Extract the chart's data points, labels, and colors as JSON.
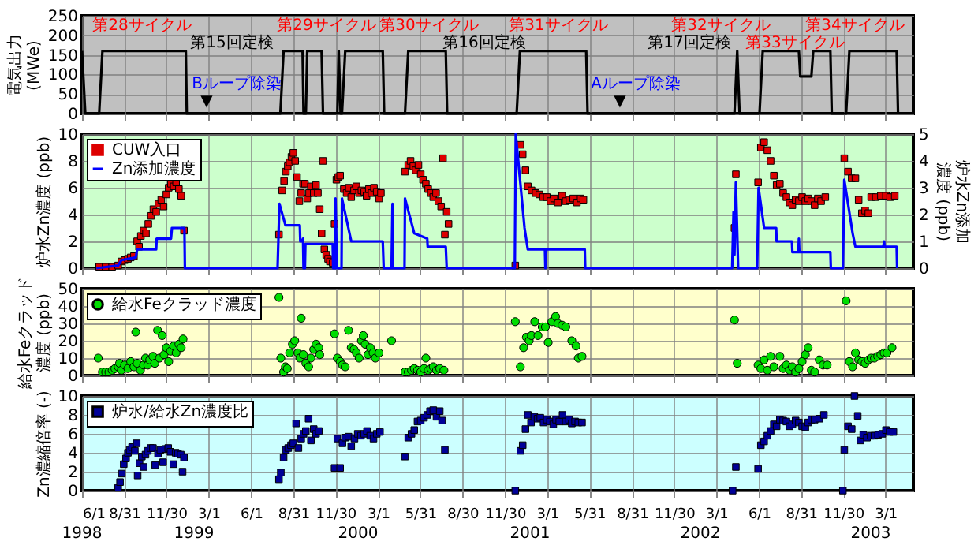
{
  "chart_data": [
    {
      "type": "line",
      "ylabel": "電気出力(MWe)",
      "xlim": [
        "1998-06-01",
        "2003-04-30"
      ],
      "ylim": [
        0,
        250
      ],
      "yticks": [
        0,
        50,
        100,
        150,
        200,
        250
      ],
      "grid": true,
      "tick_labels": "y",
      "xticks": [
        {
          "value": "1998-06-01",
          "label": null
        },
        {
          "value": "1998-08-31",
          "label": null
        },
        {
          "value": "1998-11-30",
          "label": null
        },
        {
          "value": "1999-03-01",
          "label": null
        },
        {
          "value": "1999-06-01",
          "label": null
        },
        {
          "value": "1999-08-31",
          "label": null
        },
        {
          "value": "1999-11-30",
          "label": null
        },
        {
          "value": "2000-03-01",
          "label": null
        },
        {
          "value": "2000-05-31",
          "label": null
        },
        {
          "value": "2000-08-30",
          "label": null
        },
        {
          "value": "2000-11-30",
          "label": null
        },
        {
          "value": "2001-03-01",
          "label": null
        },
        {
          "value": "2001-05-31",
          "label": null
        },
        {
          "value": "2001-08-31",
          "label": null
        },
        {
          "value": "2001-11-30",
          "label": null
        },
        {
          "value": "2002-03-01",
          "label": null
        },
        {
          "value": "2002-06-01",
          "label": null
        },
        {
          "value": "2002-08-31",
          "label": null
        },
        {
          "value": "2002-11-30",
          "label": null
        },
        {
          "value": "2003-03-01",
          "label": null
        }
      ],
      "series": [
        {
          "color": "#000000",
          "x": [
            "1998-06-01",
            "1998-06-08",
            "1998-07-08",
            "1998-07-15",
            "1999-01-11",
            "1999-01-13",
            "1999-08-03",
            "1999-08-10",
            "1999-09-20",
            "1999-09-22",
            "1999-09-27",
            "1999-09-30",
            "1999-10-31",
            "1999-11-03",
            "1999-12-04",
            "1999-12-07",
            "1999-12-11",
            "1999-12-14",
            "1999-12-21",
            "2000-03-11",
            "2000-03-14",
            "2000-04-28",
            "2000-05-05",
            "2000-07-25",
            "2000-07-28",
            "2000-12-25",
            "2001-01-01",
            "2001-05-24",
            "2001-05-27",
            "2002-04-09",
            "2002-04-15",
            "2002-04-20",
            "2002-06-02",
            "2002-06-09",
            "2002-08-26",
            "2002-08-29",
            "2002-09-22",
            "2002-09-26",
            "2002-11-02",
            "2002-11-05",
            "2002-12-06",
            "2002-12-13",
            "2003-03-25",
            "2003-03-28"
          ],
          "values": [
            160,
            0,
            0,
            160,
            160,
            0,
            0,
            160,
            160,
            0,
            0,
            160,
            160,
            0,
            0,
            160,
            0,
            0,
            160,
            160,
            0,
            0,
            160,
            160,
            0,
            0,
            160,
            160,
            0,
            0,
            160,
            0,
            0,
            160,
            160,
            95,
            95,
            160,
            160,
            0,
            0,
            160,
            160,
            0
          ]
        }
      ],
      "annotations": [
        "第28サイクル",
        "第29サイクル",
        "第30サイクル",
        "第31サイクル",
        "第32サイクル",
        "第33サイクル",
        "第34サイクル",
        "第15回定検",
        "第16回定検",
        "第17回定検",
        "Bループ除染",
        "▼",
        "Aループ除染",
        "▼"
      ]
    },
    {
      "type": "scatter",
      "ylabel": "炉水Zn濃度 (ppb)",
      "y2label": "炉水Zn添加濃度 (ppb)",
      "xlim": [
        "1998-06-01",
        "2003-04-30"
      ],
      "ylim": [
        0,
        10
      ],
      "yticks": [
        0,
        2,
        4,
        6,
        8,
        10
      ],
      "y2lim": [
        0,
        5
      ],
      "y2ticks": [
        0,
        1,
        2,
        3,
        4,
        5
      ],
      "grid": true,
      "tick_labels": "y",
      "legend": "top left",
      "xticks": [
        {
          "value": "1998-06-01",
          "label": null
        },
        {
          "value": "1998-08-31",
          "label": null
        },
        {
          "value": "1998-11-30",
          "label": null
        },
        {
          "value": "1999-03-01",
          "label": null
        },
        {
          "value": "1999-06-01",
          "label": null
        },
        {
          "value": "1999-08-31",
          "label": null
        },
        {
          "value": "1999-11-30",
          "label": null
        },
        {
          "value": "2000-03-01",
          "label": null
        },
        {
          "value": "2000-05-31",
          "label": null
        },
        {
          "value": "2000-08-30",
          "label": null
        },
        {
          "value": "2000-11-30",
          "label": null
        },
        {
          "value": "2001-03-01",
          "label": null
        },
        {
          "value": "2001-05-31",
          "label": null
        },
        {
          "value": "2001-08-31",
          "label": null
        },
        {
          "value": "2001-11-30",
          "label": null
        },
        {
          "value": "2002-03-01",
          "label": null
        },
        {
          "value": "2002-06-01",
          "label": null
        },
        {
          "value": "2002-08-31",
          "label": null
        },
        {
          "value": "2002-11-30",
          "label": null
        },
        {
          "value": "2003-03-01",
          "label": null
        }
      ],
      "series": [
        {
          "name": "CUW入口",
          "marker": "square",
          "color": "#dd0000",
          "x": [
            "1998-07-08",
            "1998-07-22",
            "1998-08-05",
            "1998-08-18",
            "1998-08-25",
            "1998-09-01",
            "1998-09-08",
            "1998-09-14",
            "1998-09-21",
            "1998-09-28",
            "1998-10-02",
            "1998-10-06",
            "1998-10-12",
            "1998-10-17",
            "1998-10-22",
            "1998-10-28",
            "1998-11-02",
            "1998-11-08",
            "1998-11-13",
            "1998-11-19",
            "1998-11-24",
            "1998-11-30",
            "1998-12-05",
            "1998-12-10",
            "1998-12-16",
            "1998-12-21",
            "1998-12-27",
            "1999-01-01",
            "1999-01-07",
            "1999-07-31",
            "1999-08-07",
            "1999-08-11",
            "1999-08-15",
            "1999-08-19",
            "1999-08-23",
            "1999-08-27",
            "1999-08-31",
            "1999-09-04",
            "1999-09-08",
            "1999-09-13",
            "1999-09-17",
            "1999-09-21",
            "1999-09-25",
            "1999-09-30",
            "1999-10-04",
            "1999-10-08",
            "1999-10-14",
            "1999-10-19",
            "1999-10-23",
            "1999-10-27",
            "1999-10-31",
            "1999-11-03",
            "1999-11-06",
            "1999-11-10",
            "1999-11-14",
            "1999-11-18",
            "1999-11-24",
            "1999-11-28",
            "1999-12-02",
            "1999-12-06",
            "1999-12-10",
            "1999-12-18",
            "1999-12-24",
            "1999-12-29",
            "2000-01-03",
            "2000-01-09",
            "2000-01-14",
            "2000-01-20",
            "2000-01-25",
            "2000-01-31",
            "2000-02-05",
            "2000-02-10",
            "2000-02-16",
            "2000-02-21",
            "2000-02-27",
            "2000-03-03",
            "2000-03-07",
            "2000-04-28",
            "2000-05-05",
            "2000-05-10",
            "2000-05-16",
            "2000-05-21",
            "2000-05-27",
            "2000-06-01",
            "2000-06-06",
            "2000-06-12",
            "2000-06-17",
            "2000-06-23",
            "2000-06-28",
            "2000-07-04",
            "2000-07-09",
            "2000-07-15",
            "2000-07-19",
            "2000-07-23",
            "2000-07-27",
            "2000-07-31",
            "2000-12-22",
            "2001-01-02",
            "2001-01-07",
            "2001-01-13",
            "2001-01-18",
            "2001-01-26",
            "2001-02-04",
            "2001-02-12",
            "2001-02-20",
            "2001-02-28",
            "2001-03-08",
            "2001-03-16",
            "2001-03-24",
            "2001-04-02",
            "2001-04-10",
            "2001-04-18",
            "2001-04-26",
            "2001-05-04",
            "2001-05-12",
            "2001-05-18",
            "2002-04-09",
            "2002-04-12",
            "2002-05-30",
            "2002-06-05",
            "2002-06-12",
            "2002-06-19",
            "2002-06-26",
            "2002-07-03",
            "2002-07-09",
            "2002-07-16",
            "2002-07-23",
            "2002-07-30",
            "2002-08-06",
            "2002-08-12",
            "2002-08-19",
            "2002-08-26",
            "2002-09-02",
            "2002-09-09",
            "2002-09-15",
            "2002-09-22",
            "2002-09-29",
            "2002-10-06",
            "2002-10-13",
            "2002-10-22",
            "2002-12-02",
            "2002-12-10",
            "2002-12-18",
            "2002-12-26",
            "2003-01-02",
            "2003-01-09",
            "2003-01-16",
            "2003-01-23",
            "2003-01-29",
            "2003-02-08",
            "2003-02-19",
            "2003-03-02",
            "2003-03-11",
            "2003-03-21"
          ],
          "values": [
            0.1,
            0.1,
            0.1,
            0.2,
            0.5,
            0.6,
            0.7,
            0.8,
            0.9,
            2.0,
            1.6,
            2.4,
            2.8,
            2.6,
            3.3,
            3.9,
            4.4,
            4.2,
            4.8,
            5.1,
            4.6,
            5.5,
            6.0,
            6.3,
            6.1,
            6.4,
            5.9,
            5.4,
            2.8,
            2.5,
            5.8,
            6.5,
            7.2,
            7.6,
            7.9,
            8.3,
            8.6,
            8.0,
            6.8,
            5.0,
            5.6,
            6.3,
            6.3,
            5.2,
            5.6,
            6.1,
            5.6,
            6.2,
            5.6,
            4.4,
            2.6,
            8.0,
            1.4,
            1.0,
            0.7,
            0.5,
            0.4,
            3.3,
            6.6,
            6.8,
            6.9,
            5.9,
            5.6,
            6.0,
            5.3,
            5.8,
            6.1,
            5.6,
            5.8,
            5.7,
            5.4,
            5.9,
            5.6,
            6.0,
            5.7,
            5.2,
            5.6,
            7.2,
            7.7,
            8.0,
            7.6,
            7.3,
            7.7,
            7.0,
            6.6,
            6.3,
            5.9,
            5.6,
            5.3,
            5.6,
            5.0,
            4.6,
            8.2,
            2.5,
            4.2,
            3.3,
            0.2,
            9.2,
            8.5,
            7.3,
            6.1,
            5.8,
            5.6,
            5.5,
            5.3,
            5.3,
            5.0,
            5.2,
            4.9,
            5.4,
            5.0,
            5.1,
            5.2,
            4.9,
            5.2,
            5.1,
            3.0,
            7.0,
            6.4,
            9.0,
            9.4,
            8.8,
            8.0,
            6.9,
            6.2,
            6.3,
            5.6,
            5.3,
            4.9,
            4.7,
            5.1,
            5.0,
            5.3,
            5.0,
            5.2,
            5.0,
            4.7,
            5.2,
            5.0,
            5.3,
            8.2,
            7.2,
            6.7,
            6.7,
            5.1,
            4.1,
            4.3,
            4.1,
            5.3,
            5.3,
            5.4,
            5.4,
            5.3,
            5.4
          ]
        },
        {
          "name": "Zn添加濃度",
          "type": "line",
          "axis": "y2",
          "color": "#0000ff",
          "x": [
            "1998-07-02",
            "1998-08-18",
            "1998-08-25",
            "1998-09-25",
            "1998-09-28",
            "1998-11-08",
            "1998-11-09",
            "1998-12-10",
            "1998-12-12",
            "1999-01-08",
            "1999-01-09",
            "1999-07-28",
            "1999-08-01",
            "1999-08-14",
            "1999-09-14",
            "1999-09-15",
            "1999-09-19",
            "1999-09-21",
            "1999-09-22",
            "1999-09-25",
            "1999-09-26",
            "1999-11-24",
            "1999-11-25",
            "1999-11-29",
            "1999-11-30",
            "1999-12-03",
            "1999-12-13",
            "1999-12-14",
            "2000-01-03",
            "2000-03-11",
            "2000-03-13",
            "2000-03-30",
            "2000-04-01",
            "2000-04-02",
            "2000-04-27",
            "2000-04-28",
            "2000-05-18",
            "2000-06-15",
            "2000-06-16",
            "2000-07-25",
            "2000-07-27",
            "2000-12-21",
            "2000-12-23",
            "2001-01-11",
            "2001-01-18",
            "2001-02-24",
            "2001-02-25",
            "2001-02-27",
            "2001-05-21",
            "2001-05-22",
            "2002-04-04",
            "2002-04-07",
            "2002-04-09",
            "2002-04-12",
            "2002-04-17",
            "2002-05-28",
            "2002-05-31",
            "2002-06-12",
            "2002-07-08",
            "2002-07-09",
            "2002-08-11",
            "2002-08-12",
            "2002-08-25",
            "2002-08-26",
            "2002-08-27",
            "2002-11-02",
            "2002-11-03",
            "2002-11-29",
            "2002-12-02",
            "2002-12-20",
            "2002-12-26",
            "2003-02-24",
            "2003-02-26",
            "2003-02-27",
            "2003-03-25",
            "2003-03-26"
          ],
          "values": [
            0,
            0.1,
            0.3,
            0.4,
            0.7,
            0.7,
            1.1,
            1.1,
            1.5,
            1.5,
            0,
            0,
            2.4,
            1.6,
            1.6,
            1.0,
            1.0,
            1.1,
            0,
            0,
            0.9,
            0.9,
            0,
            0,
            2.6,
            0,
            0,
            2.6,
            1.0,
            1.0,
            0,
            0,
            2.4,
            0,
            0,
            2.6,
            1.3,
            1.1,
            0.8,
            0.8,
            0,
            0,
            5.0,
            1.5,
            0.7,
            0.7,
            0,
            0.7,
            0.7,
            0,
            0,
            2.1,
            0.5,
            3.2,
            0,
            0,
            3.0,
            1.5,
            1.5,
            1.0,
            1.0,
            0.6,
            0.6,
            1.1,
            0.6,
            0.6,
            0,
            0,
            3.3,
            1.3,
            0.8,
            0.8,
            1.0,
            0.8,
            0.8,
            0
          ]
        }
      ]
    },
    {
      "type": "scatter",
      "ylabel": "給水Feクラッド濃度 (ppb)",
      "xlim": [
        "1998-06-01",
        "2003-04-30"
      ],
      "ylim": [
        0,
        50
      ],
      "yticks": [
        0,
        10,
        20,
        30,
        40,
        50
      ],
      "grid": true,
      "tick_labels": "y",
      "legend": "top left",
      "marker": "circle",
      "xticks": [
        {
          "value": "1998-06-01",
          "label": null
        },
        {
          "value": "1998-08-31",
          "label": null
        },
        {
          "value": "1998-11-30",
          "label": null
        },
        {
          "value": "1999-03-01",
          "label": null
        },
        {
          "value": "1999-06-01",
          "label": null
        },
        {
          "value": "1999-08-31",
          "label": null
        },
        {
          "value": "1999-11-30",
          "label": null
        },
        {
          "value": "2000-03-01",
          "label": null
        },
        {
          "value": "2000-05-31",
          "label": null
        },
        {
          "value": "2000-08-30",
          "label": null
        },
        {
          "value": "2000-11-30",
          "label": null
        },
        {
          "value": "2001-03-01",
          "label": null
        },
        {
          "value": "2001-05-31",
          "label": null
        },
        {
          "value": "2001-08-31",
          "label": null
        },
        {
          "value": "2001-11-30",
          "label": null
        },
        {
          "value": "2002-03-01",
          "label": null
        },
        {
          "value": "2002-06-01",
          "label": null
        },
        {
          "value": "2002-08-31",
          "label": null
        },
        {
          "value": "2002-11-30",
          "label": null
        },
        {
          "value": "2003-03-01",
          "label": null
        }
      ],
      "series": [
        {
          "name": "給水Feクラッド濃度",
          "color": "#00dd00",
          "x": [
            "1998-07-06",
            "1998-07-15",
            "1998-07-22",
            "1998-07-29",
            "1998-08-05",
            "1998-08-11",
            "1998-08-18",
            "1998-08-21",
            "1998-08-25",
            "1998-09-01",
            "1998-09-08",
            "1998-09-14",
            "1998-09-21",
            "1998-09-25",
            "1998-09-28",
            "1998-10-05",
            "1998-10-12",
            "1998-10-16",
            "1998-10-21",
            "1998-10-25",
            "1998-11-01",
            "1998-11-05",
            "1998-11-11",
            "1998-11-15",
            "1998-11-21",
            "1998-11-25",
            "1998-11-30",
            "1998-12-05",
            "1998-12-09",
            "1998-12-16",
            "1998-12-21",
            "1998-12-27",
            "1999-01-01",
            "1999-01-05",
            "1999-07-31",
            "1999-08-04",
            "1999-08-10",
            "1999-08-14",
            "1999-08-18",
            "1999-08-23",
            "1999-08-29",
            "1999-09-03",
            "1999-09-10",
            "1999-09-14",
            "1999-09-17",
            "1999-09-22",
            "1999-09-27",
            "1999-10-03",
            "1999-10-08",
            "1999-10-14",
            "1999-10-19",
            "1999-10-25",
            "1999-10-27",
            "1999-11-28",
            "1999-12-04",
            "1999-12-10",
            "1999-12-15",
            "1999-12-21",
            "1999-12-28",
            "2000-01-03",
            "2000-01-09",
            "2000-01-14",
            "2000-01-20",
            "2000-01-25",
            "2000-01-29",
            "2000-02-02",
            "2000-02-08",
            "2000-02-13",
            "2000-02-19",
            "2000-02-24",
            "2000-03-03",
            "2000-03-30",
            "2000-04-28",
            "2000-05-05",
            "2000-05-12",
            "2000-05-18",
            "2000-05-25",
            "2000-06-01",
            "2000-06-08",
            "2000-06-12",
            "2000-06-17",
            "2000-06-23",
            "2000-06-28",
            "2000-07-05",
            "2000-07-12",
            "2000-07-21",
            "2000-12-22",
            "2001-01-02",
            "2001-01-09",
            "2001-01-15",
            "2001-01-21",
            "2001-01-26",
            "2001-02-02",
            "2001-02-09",
            "2001-02-18",
            "2001-02-25",
            "2001-03-03",
            "2001-03-11",
            "2001-03-19",
            "2001-03-24",
            "2001-04-02",
            "2001-04-10",
            "2001-04-23",
            "2001-05-02",
            "2001-05-07",
            "2001-05-15",
            "2002-04-09",
            "2002-04-15",
            "2002-05-30",
            "2002-06-05",
            "2002-06-12",
            "2002-06-19",
            "2002-06-26",
            "2002-07-03",
            "2002-07-16",
            "2002-07-23",
            "2002-07-30",
            "2002-08-06",
            "2002-08-12",
            "2002-08-19",
            "2002-08-26",
            "2002-09-02",
            "2002-09-09",
            "2002-09-15",
            "2002-09-22",
            "2002-09-29",
            "2002-10-09",
            "2002-10-17",
            "2002-10-26",
            "2002-12-06",
            "2002-12-13",
            "2002-12-20",
            "2002-12-26",
            "2003-01-02",
            "2003-01-09",
            "2003-01-16",
            "2003-01-23",
            "2003-01-29",
            "2003-02-05",
            "2003-02-12",
            "2003-02-19",
            "2003-02-26",
            "2003-03-04",
            "2003-03-15"
          ],
          "values": [
            10,
            2,
            2,
            2,
            3,
            4,
            5,
            7,
            3,
            6,
            4,
            8,
            5,
            25,
            7,
            3,
            6,
            10,
            6,
            9,
            11,
            7,
            26,
            10,
            23,
            12,
            16,
            8,
            14,
            17,
            13,
            18,
            16,
            21,
            45,
            10,
            2,
            5,
            4,
            13,
            18,
            20,
            13,
            10,
            33,
            12,
            7,
            5,
            10,
            15,
            18,
            16,
            12,
            24,
            10,
            8,
            6,
            5,
            26,
            16,
            15,
            13,
            10,
            20,
            23,
            18,
            12,
            16,
            13,
            10,
            13,
            20,
            2,
            2,
            3,
            4,
            3,
            2,
            4,
            10,
            3,
            4,
            5,
            3,
            4,
            3,
            31,
            5,
            16,
            22,
            20,
            23,
            31,
            23,
            28,
            28,
            19,
            31,
            34,
            30,
            29,
            28,
            20,
            17,
            10,
            11,
            32,
            7,
            6,
            4,
            9,
            3,
            11,
            5,
            11,
            4,
            6,
            3,
            5,
            2,
            4,
            8,
            12,
            16,
            3,
            2,
            9,
            6,
            6,
            43,
            8,
            5,
            13,
            9,
            8,
            7,
            9,
            10,
            10,
            11,
            12,
            13,
            13,
            16
          ]
        }
      ]
    },
    {
      "type": "scatter",
      "ylabel": "Zn濃縮倍率 (-)",
      "xlim": [
        "1998-06-01",
        "2003-04-30"
      ],
      "ylim": [
        0,
        10
      ],
      "yticks": [
        0,
        2,
        4,
        6,
        8,
        10
      ],
      "grid": true,
      "legend": "top left",
      "marker": "square",
      "xticks": [
        {
          "value": "1998-06-01",
          "label": "6/1"
        },
        {
          "value": "1998-08-31",
          "label": "8/31"
        },
        {
          "value": "1998-11-30",
          "label": "11/30"
        },
        {
          "value": "1999-03-01",
          "label": "3/1"
        },
        {
          "value": "1999-06-01",
          "label": "6/1"
        },
        {
          "value": "1999-08-31",
          "label": "8/31"
        },
        {
          "value": "1999-11-30",
          "label": "11/30"
        },
        {
          "value": "2000-03-01",
          "label": "3/1"
        },
        {
          "value": "2000-05-31",
          "label": "5/31"
        },
        {
          "value": "2000-08-30",
          "label": "8/30"
        },
        {
          "value": "2000-11-30",
          "label": "11/30"
        },
        {
          "value": "2001-03-01",
          "label": "3/1"
        },
        {
          "value": "2001-05-31",
          "label": "5/31"
        },
        {
          "value": "2001-08-31",
          "label": "8/31"
        },
        {
          "value": "2001-11-30",
          "label": "11/30"
        },
        {
          "value": "2002-03-01",
          "label": "3/1"
        },
        {
          "value": "2002-06-01",
          "label": "6/1"
        },
        {
          "value": "2002-08-31",
          "label": "8/31"
        },
        {
          "value": "2002-11-30",
          "label": "11/30"
        },
        {
          "value": "2003-03-01",
          "label": "3/1"
        }
      ],
      "annotations": [
        "1998",
        "1999",
        "2000",
        "2001",
        "2002",
        "2003"
      ],
      "series": [
        {
          "name": "炉水/給水Zn濃度比",
          "color": "#000099",
          "x": [
            "1998-08-18",
            "1998-08-22",
            "1998-08-26",
            "1998-08-30",
            "1998-09-04",
            "1998-09-08",
            "1998-09-12",
            "1998-09-17",
            "1998-09-23",
            "1998-09-27",
            "1998-09-29",
            "1998-10-03",
            "1998-10-08",
            "1998-10-12",
            "1998-10-16",
            "1998-10-21",
            "1998-10-27",
            "1998-11-01",
            "1998-11-06",
            "1998-11-12",
            "1998-11-17",
            "1998-11-23",
            "1998-11-28",
            "1998-12-04",
            "1998-12-09",
            "1998-12-15",
            "1998-12-20",
            "1998-12-25",
            "1998-12-31",
            "1999-01-04",
            "1999-01-07",
            "1999-07-31",
            "1999-08-04",
            "1999-08-10",
            "1999-08-15",
            "1999-08-20",
            "1999-08-26",
            "1999-08-31",
            "1999-09-06",
            "1999-09-11",
            "1999-09-17",
            "1999-09-22",
            "1999-09-27",
            "1999-10-03",
            "1999-10-08",
            "1999-10-14",
            "1999-10-19",
            "1999-10-25",
            "1999-11-28",
            "1999-12-04",
            "1999-12-10",
            "1999-12-15",
            "1999-12-21",
            "1999-12-28",
            "2000-01-03",
            "2000-01-10",
            "2000-01-17",
            "2000-01-24",
            "2000-01-31",
            "2000-02-06",
            "2000-02-13",
            "2000-02-20",
            "2000-02-27",
            "2000-03-05",
            "2000-04-28",
            "2000-05-05",
            "2000-05-12",
            "2000-05-18",
            "2000-05-25",
            "2000-06-01",
            "2000-06-08",
            "2000-06-15",
            "2000-06-21",
            "2000-06-28",
            "2000-07-05",
            "2000-07-12",
            "2000-07-17",
            "2000-07-23",
            "2000-12-22",
            "2001-01-02",
            "2001-01-07",
            "2001-01-13",
            "2001-01-18",
            "2001-01-25",
            "2001-02-01",
            "2001-02-08",
            "2001-02-14",
            "2001-02-21",
            "2001-02-28",
            "2001-03-07",
            "2001-03-14",
            "2001-03-20",
            "2001-03-27",
            "2001-04-03",
            "2001-04-10",
            "2001-04-17",
            "2001-04-23",
            "2001-04-30",
            "2001-05-07",
            "2001-05-15",
            "2002-04-05",
            "2002-04-12",
            "2002-05-30",
            "2002-06-05",
            "2002-06-12",
            "2002-06-19",
            "2002-06-26",
            "2002-07-03",
            "2002-07-09",
            "2002-07-16",
            "2002-07-23",
            "2002-07-30",
            "2002-08-06",
            "2002-08-12",
            "2002-08-19",
            "2002-08-26",
            "2002-09-02",
            "2002-09-09",
            "2002-09-15",
            "2002-09-22",
            "2002-09-29",
            "2002-10-09",
            "2002-10-19",
            "2002-11-29",
            "2002-12-02",
            "2002-12-10",
            "2002-12-18",
            "2002-12-24",
            "2002-12-31",
            "2003-01-06",
            "2003-01-12",
            "2003-01-20",
            "2003-01-28",
            "2003-02-05",
            "2003-02-13",
            "2003-02-22",
            "2003-03-02",
            "2003-03-10",
            "2003-03-18"
          ],
          "values": [
            0.3,
            0.9,
            1.8,
            2.8,
            3.4,
            4.0,
            4.3,
            4.6,
            4.2,
            5.0,
            1.6,
            2.9,
            3.6,
            2.5,
            3.8,
            4.2,
            4.5,
            4.5,
            2.7,
            3.9,
            4.3,
            3.0,
            4.4,
            4.5,
            4.1,
            2.8,
            4.0,
            3.9,
            3.8,
            2.0,
            3.5,
            1.2,
            1.9,
            3.5,
            4.3,
            4.5,
            4.8,
            5.0,
            7.1,
            4.5,
            5.5,
            6.0,
            6.3,
            7.6,
            5.3,
            6.5,
            6.0,
            6.3,
            2.4,
            5.5,
            2.4,
            5.0,
            5.6,
            5.7,
            4.7,
            5.5,
            6.0,
            5.8,
            6.0,
            6.3,
            5.8,
            5.5,
            6.0,
            6.2,
            3.6,
            5.6,
            6.0,
            6.4,
            7.3,
            7.4,
            7.7,
            8.0,
            8.4,
            8.5,
            7.8,
            8.4,
            7.4,
            4.3,
            0,
            4.2,
            4.8,
            6.5,
            8.0,
            7.2,
            7.8,
            7.6,
            7.7,
            7.2,
            7.5,
            7.3,
            7.0,
            7.5,
            7.3,
            8.0,
            7.3,
            7.5,
            7.1,
            7.3,
            7.2,
            7.2,
            0,
            2.5,
            2.3,
            4.8,
            5.2,
            5.8,
            6.3,
            7.0,
            6.8,
            7.5,
            7.4,
            7.3,
            6.8,
            7.0,
            7.4,
            7.2,
            6.8,
            6.7,
            7.2,
            7.5,
            7.5,
            7.6,
            8.0,
            0,
            4.3,
            6.8,
            6.5,
            10.0,
            7.9,
            5.3,
            5.9,
            5.6,
            5.8,
            5.8,
            5.9,
            6.0,
            6.4,
            6.2,
            6.2
          ]
        }
      ]
    }
  ]
}
